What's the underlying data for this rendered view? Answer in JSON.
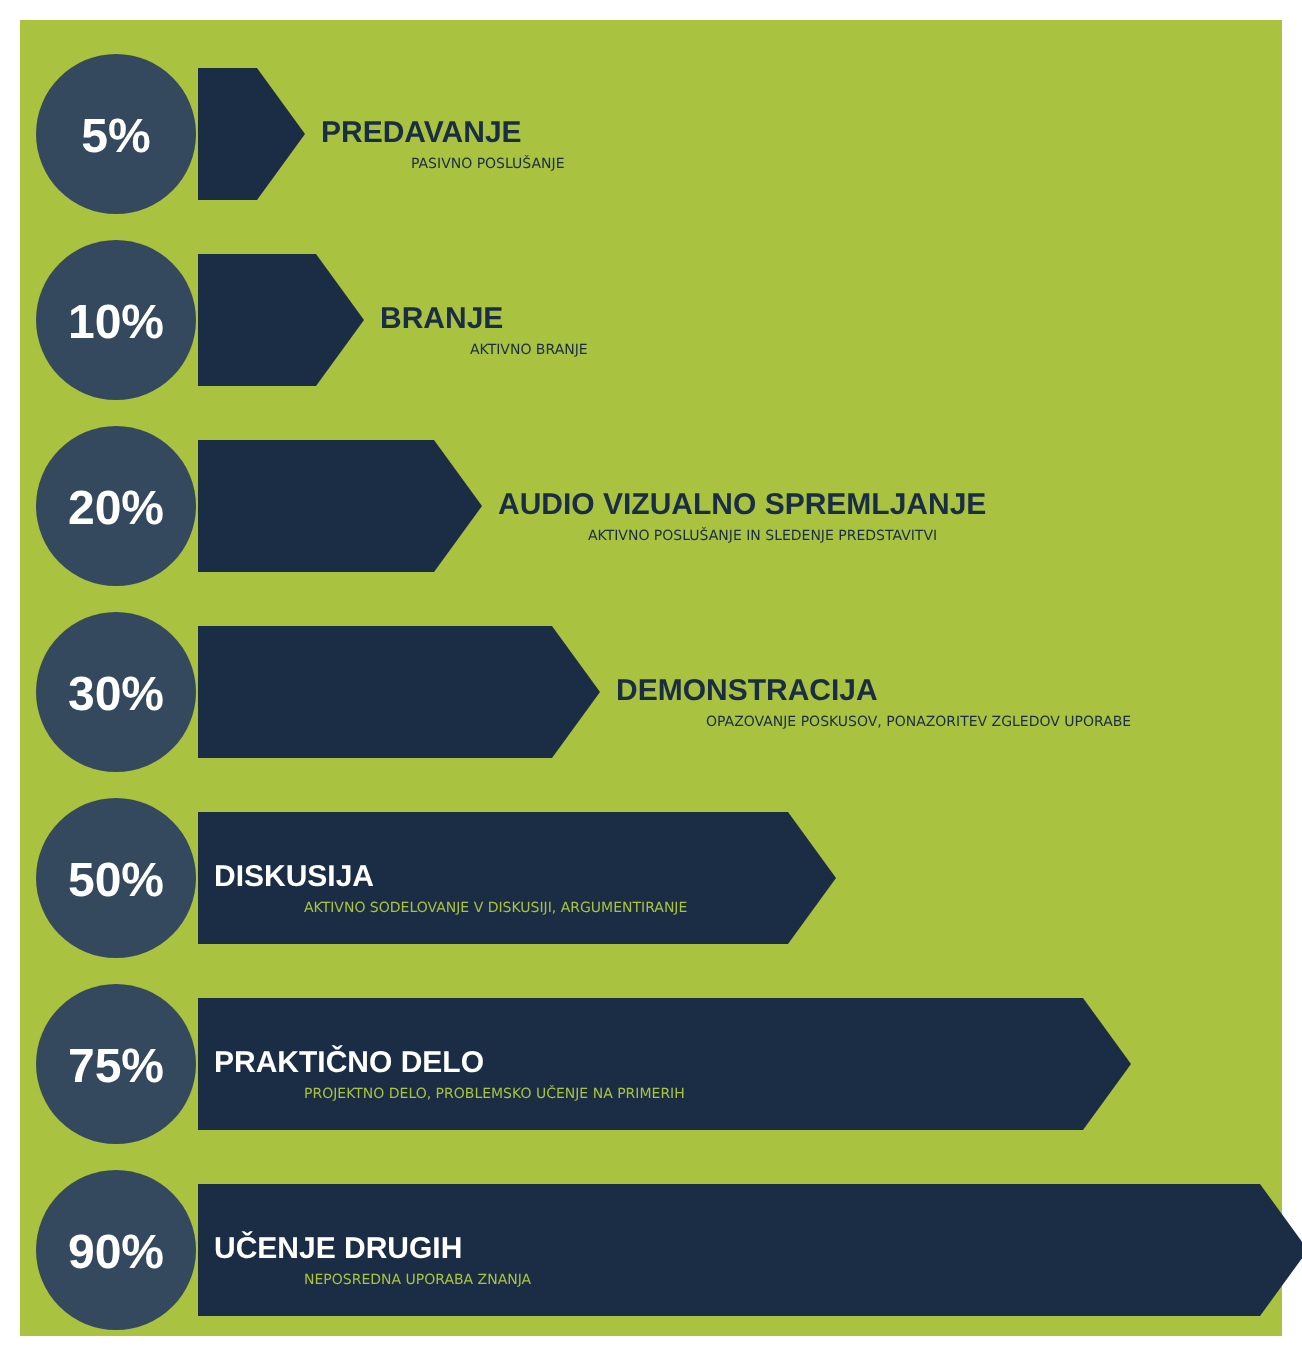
{
  "chart_data": {
    "type": "bar",
    "orientation": "horizontal",
    "categories": [
      "PREDAVANJE",
      "BRANJE",
      "AUDIO VIZUALNO SPREMLJANJE",
      "DEMONSTRACIJA",
      "DISKUSIJA",
      "PRAKTIČNO DELO",
      "UČENJE DRUGIH"
    ],
    "values": [
      5,
      10,
      20,
      30,
      50,
      75,
      90
    ],
    "value_labels": [
      "5%",
      "10%",
      "20%",
      "30%",
      "50%",
      "75%",
      "90%"
    ],
    "annotations": [
      "PASIVNO POSLUŠANJE",
      "AKTIVNO BRANJE",
      "AKTIVNO POSLUŠANJE IN SLEDENJE PREDSTAVITVI",
      "OPAZOVANJE POSKUSOV, PONAZORITEV ZGLEDOV UPORABE",
      "AKTIVNO SODELOVANJE V DISKUSIJI, ARGUMENTIRANJE",
      "PROJEKTNO DELO, PROBLEMSKO UČENJE NA PRIMERIH",
      "NEPOSREDNA UPORABA ZNANJA"
    ],
    "colors": [
      "#1b2d44",
      "#1b2d44",
      "#1b2d44",
      "#1b2d44",
      "#1b2d44",
      "#1b2d44",
      "#1b2d44"
    ]
  }
}
